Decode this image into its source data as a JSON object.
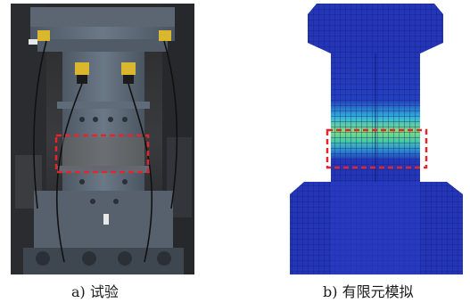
{
  "figure": {
    "panel_a": {
      "caption_letter": "a)",
      "caption_text": "试验"
    },
    "panel_b": {
      "caption_letter": "b)",
      "caption_text": "有限元模拟"
    },
    "highlight_color": "#e3262b",
    "fe_colors": {
      "base": "#2336b8",
      "mid": "#31b6d8",
      "high": "#7fe07a",
      "peak": "#45c7a5"
    }
  }
}
